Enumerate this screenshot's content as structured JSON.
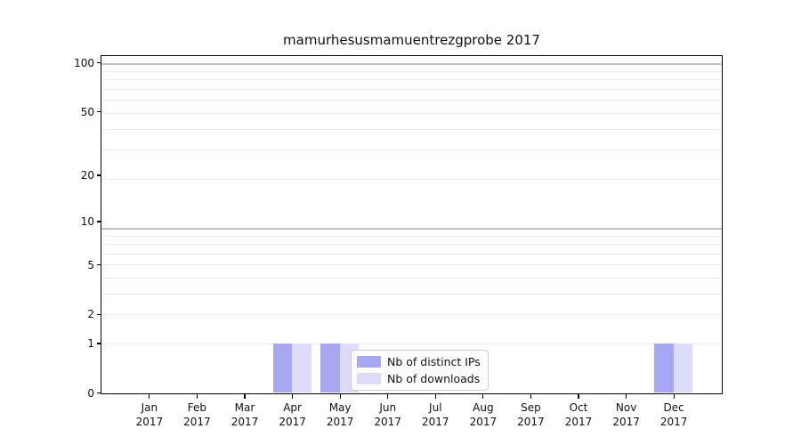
{
  "chart_data": {
    "type": "bar",
    "title": "mamurhesusmamuentrezgprobe 2017",
    "categories": [
      "Jan",
      "Feb",
      "Mar",
      "Apr",
      "May",
      "Jun",
      "Jul",
      "Aug",
      "Sep",
      "Oct",
      "Nov",
      "Dec"
    ],
    "category_year": "2017",
    "series": [
      {
        "name": "Nb of distinct IPs",
        "color": "#a7a7f2",
        "values": [
          0,
          0,
          0,
          1,
          1,
          0,
          0,
          0,
          0,
          0,
          0,
          1
        ]
      },
      {
        "name": "Nb of downloads",
        "color": "#dcdcf9",
        "values": [
          0,
          0,
          0,
          1,
          1,
          0,
          0,
          0,
          0,
          0,
          0,
          1
        ]
      }
    ],
    "y_ticks": [
      0,
      1,
      2,
      5,
      10,
      20,
      50,
      100
    ],
    "y_scale": "log1p",
    "ylim": [
      0,
      110
    ],
    "xlabel": "",
    "ylabel": "",
    "grid": true,
    "legend_position": "lower center"
  },
  "style": {
    "background": "#ffffff",
    "axis_color": "#000000",
    "text_color": "#111111",
    "grid_minor_color": "#ececec",
    "grid_major_color": "#bfbfbf",
    "legend_border_color": "#cccccc"
  }
}
